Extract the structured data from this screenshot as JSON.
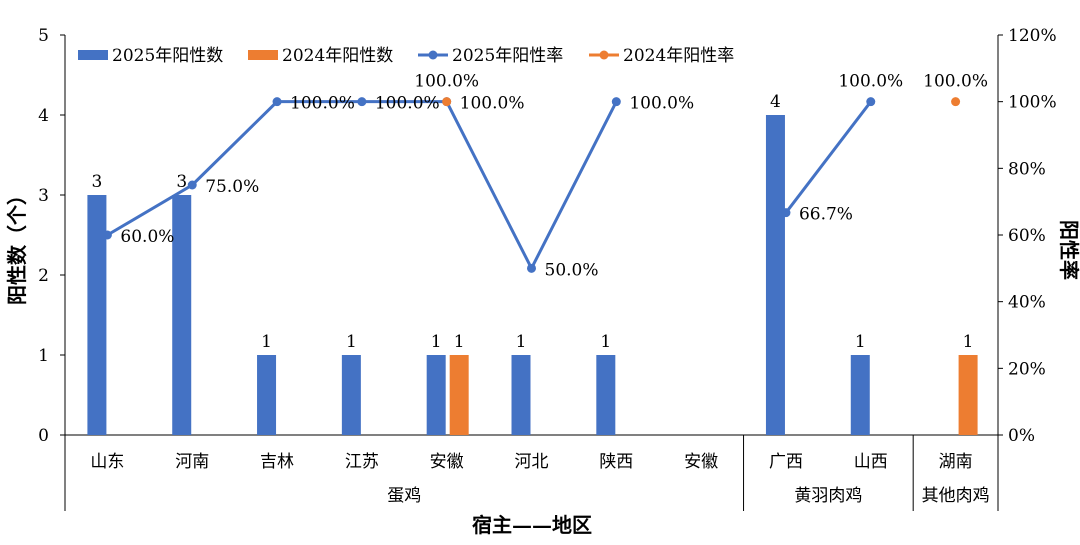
{
  "chart_data": {
    "type": "bar",
    "title": "",
    "xlabel": "宿主——地区",
    "ylabel": "阳性数（个）",
    "ylabel_right": "阳性率",
    "ylim": [
      0,
      5
    ],
    "ylim_right": [
      0,
      1.2
    ],
    "yticks": [
      "0",
      "1",
      "2",
      "3",
      "4",
      "5"
    ],
    "yticks_right": [
      "0%",
      "20%",
      "40%",
      "60%",
      "80%",
      "100%",
      "120%"
    ],
    "categories": [
      "山东",
      "河南",
      "吉林",
      "江苏",
      "安徽",
      "河北",
      "陕西",
      "安徽",
      "广西",
      "山西",
      "湖南"
    ],
    "groups": [
      {
        "name": "蛋鸡",
        "count": 8
      },
      {
        "name": "黄羽肉鸡",
        "count": 2
      },
      {
        "name": "其他肉鸡",
        "count": 1
      }
    ],
    "legend_position": "top",
    "series": [
      {
        "name": "2025年阳性数",
        "kind": "bar",
        "color": "#4472C4",
        "values": [
          3,
          3,
          1,
          1,
          1,
          1,
          1,
          null,
          4,
          1,
          null
        ],
        "labels": [
          "3",
          "3",
          "1",
          "1",
          "1",
          "1",
          "1",
          null,
          "4",
          "1",
          null
        ]
      },
      {
        "name": "2024年阳性数",
        "kind": "bar",
        "color": "#ED7D31",
        "values": [
          null,
          null,
          null,
          null,
          1,
          null,
          null,
          null,
          null,
          null,
          1
        ],
        "labels": [
          null,
          null,
          null,
          null,
          "1",
          null,
          null,
          null,
          null,
          null,
          "1"
        ]
      },
      {
        "name": "2025年阳性率",
        "kind": "line",
        "color": "#4472C4",
        "values": [
          0.6,
          0.75,
          1.0,
          1.0,
          1.0,
          0.5,
          1.0,
          null,
          0.667,
          1.0,
          null
        ],
        "labels": [
          "60.0%",
          "75.0%",
          "100.0%",
          "100.0%",
          "100.0%",
          "50.0%",
          "100.0%",
          null,
          "66.7%",
          "100.0%",
          null
        ],
        "label_pos": [
          "right",
          "right",
          "right",
          "right",
          "right",
          "right",
          "right",
          null,
          "right",
          "above",
          null
        ]
      },
      {
        "name": "2024年阳性率",
        "kind": "line",
        "color": "#ED7D31",
        "values": [
          null,
          null,
          null,
          null,
          1.0,
          null,
          null,
          null,
          null,
          null,
          1.0
        ],
        "labels": [
          null,
          null,
          null,
          null,
          "100.0%",
          null,
          null,
          null,
          null,
          null,
          "100.0%"
        ],
        "label_pos": [
          null,
          null,
          null,
          null,
          "right",
          null,
          null,
          null,
          null,
          null,
          "above"
        ]
      }
    ]
  }
}
